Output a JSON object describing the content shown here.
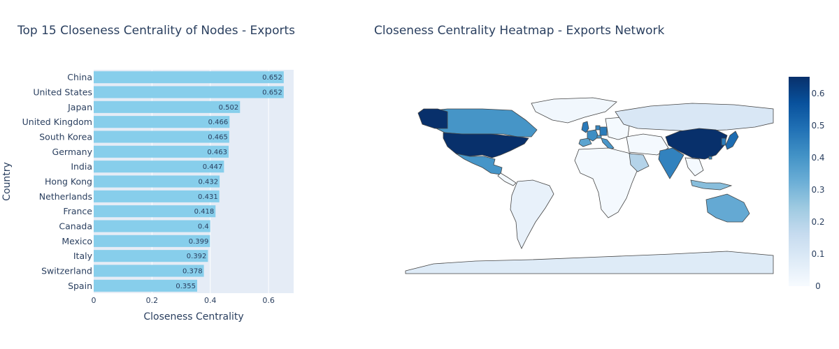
{
  "chart_data": [
    {
      "type": "bar",
      "orientation": "horizontal",
      "title": "Top 15 Closeness Centrality of Nodes - Exports",
      "xlabel": "Closeness Centrality",
      "ylabel": "Country",
      "xlim": [
        0,
        0.686
      ],
      "xticks": [
        0,
        0.2,
        0.4,
        0.6
      ],
      "xtick_labels": [
        "0",
        "0.2",
        "0.4",
        "0.6"
      ],
      "grid": true,
      "bar_color": "#87ceeb",
      "categories": [
        "China",
        "United States",
        "Japan",
        "United Kingdom",
        "South Korea",
        "Germany",
        "India",
        "Hong Kong",
        "Netherlands",
        "France",
        "Canada",
        "Mexico",
        "Italy",
        "Switzerland",
        "Spain"
      ],
      "values": [
        0.652,
        0.652,
        0.502,
        0.466,
        0.465,
        0.463,
        0.447,
        0.432,
        0.431,
        0.418,
        0.4,
        0.399,
        0.392,
        0.378,
        0.355
      ],
      "value_labels": [
        "0.652",
        "0.652",
        "0.502",
        "0.466",
        "0.465",
        "0.463",
        "0.447",
        "0.432",
        "0.431",
        "0.418",
        "0.4",
        "0.399",
        "0.392",
        "0.378",
        "0.355"
      ]
    },
    {
      "type": "heatmap",
      "subtype": "choropleth",
      "title": "Closeness Centrality Heatmap - Exports Network",
      "colorscale": "Blues",
      "colorbar_range": [
        0,
        0.652
      ],
      "colorbar_ticks": [
        0,
        0.1,
        0.2,
        0.3,
        0.4,
        0.5,
        0.6
      ],
      "colorbar_tick_labels": [
        "0",
        "0.1",
        "0.2",
        "0.3",
        "0.4",
        "0.5",
        "0.6"
      ],
      "regions": [
        {
          "name": "China",
          "value": 0.652
        },
        {
          "name": "United States",
          "value": 0.652
        },
        {
          "name": "Japan",
          "value": 0.502
        },
        {
          "name": "United Kingdom",
          "value": 0.466
        },
        {
          "name": "South Korea",
          "value": 0.465
        },
        {
          "name": "Germany",
          "value": 0.463
        },
        {
          "name": "India",
          "value": 0.447
        },
        {
          "name": "Hong Kong",
          "value": 0.432
        },
        {
          "name": "Netherlands",
          "value": 0.431
        },
        {
          "name": "France",
          "value": 0.418
        },
        {
          "name": "Canada",
          "value": 0.4
        },
        {
          "name": "Mexico",
          "value": 0.399
        },
        {
          "name": "Italy",
          "value": 0.392
        },
        {
          "name": "Switzerland",
          "value": 0.378
        },
        {
          "name": "Spain",
          "value": 0.355
        },
        {
          "name": "Australia",
          "value": 0.34
        },
        {
          "name": "Russia",
          "value": 0.1
        },
        {
          "name": "Brazil",
          "value": 0.05
        },
        {
          "name": "Saudi Arabia",
          "value": 0.2
        },
        {
          "name": "Indonesia",
          "value": 0.28
        },
        {
          "name": "Greenland",
          "value": 0.02
        },
        {
          "name": "Antarctica",
          "value": 0.08
        }
      ]
    }
  ]
}
